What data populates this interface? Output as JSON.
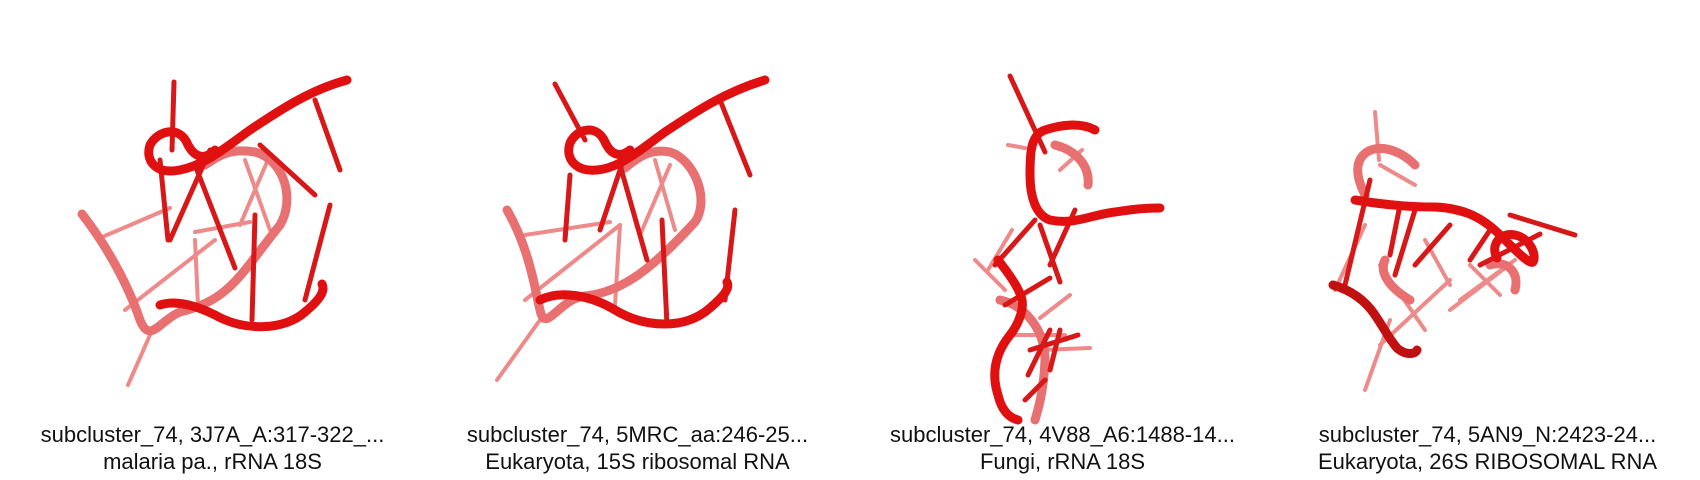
{
  "panels": [
    {
      "title": "subcluster_74, 3J7A_A:317-322_...",
      "subtitle": "malaria pa., rRNA 18S"
    },
    {
      "title": "subcluster_74, 5MRC_aa:246-25...",
      "subtitle": "Eukaryota, 15S ribosomal RNA"
    },
    {
      "title": "subcluster_74, 4V88_A6:1488-14...",
      "subtitle": "Fungi, rRNA 18S"
    },
    {
      "title": "subcluster_74, 5AN9_N:2423-24...",
      "subtitle": "Eukaryota, 26S RIBOSOMAL RNA"
    }
  ],
  "colors": {
    "backbone": "#e01010",
    "backbone_far": "#e86a6a",
    "base": "#e02020",
    "base_far": "#ee8a8a"
  }
}
